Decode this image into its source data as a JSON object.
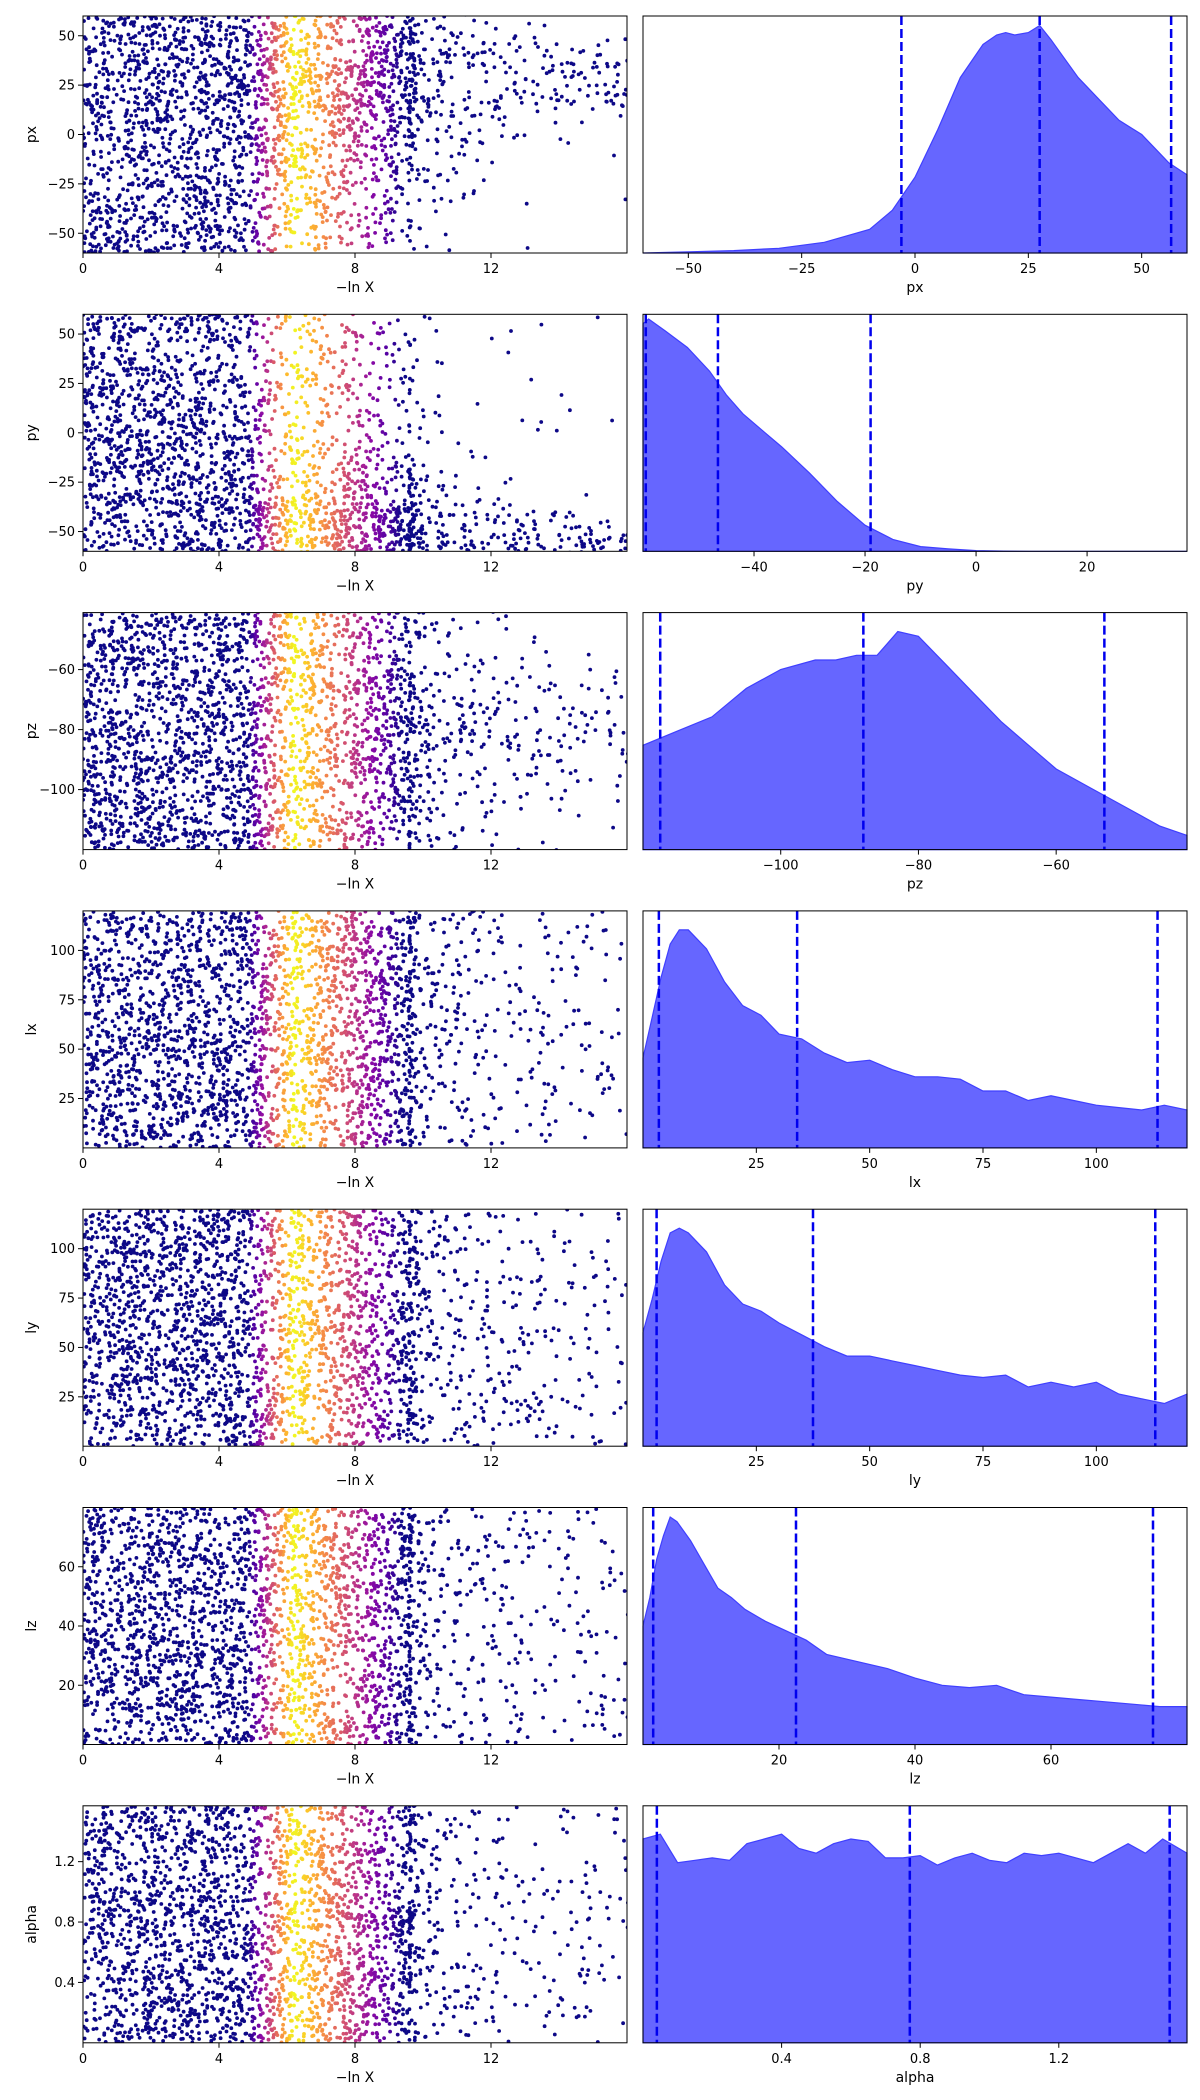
{
  "chart_data": [
    {
      "type": "scatter",
      "xlabel": "−ln X",
      "ylabel": "px",
      "xlim": [
        0,
        16
      ],
      "ylim": [
        -60,
        60
      ],
      "xticks": [
        0,
        4,
        8,
        12
      ],
      "yticks": [
        -50,
        -25,
        0,
        25,
        50
      ],
      "colormap": "plasma",
      "color_peak_x": 6.2,
      "trend": {
        "start_x": 4.0,
        "end_x": 16.5,
        "target": 28,
        "end_spread": 9
      },
      "grid": false
    },
    {
      "type": "area",
      "xlabel": "px",
      "xlim": [
        -60,
        60
      ],
      "xticks": [
        -50,
        -25,
        0,
        25,
        50
      ],
      "fill_color": "#6666ff",
      "edge_color": "#3f3fff",
      "quantile_lines": [
        -3,
        27.5,
        56.5
      ],
      "quantile_color": "#0000ee",
      "x": [
        -60,
        -50,
        -40,
        -30,
        -20,
        -10,
        -5,
        0,
        5,
        10,
        15,
        18,
        20,
        22,
        25,
        27.5,
        30,
        33,
        36,
        40,
        45,
        50,
        53,
        56,
        60
      ],
      "y": [
        0.0,
        0.005,
        0.01,
        0.02,
        0.045,
        0.1,
        0.18,
        0.32,
        0.52,
        0.74,
        0.88,
        0.92,
        0.93,
        0.92,
        0.93,
        0.96,
        0.9,
        0.82,
        0.74,
        0.66,
        0.56,
        0.5,
        0.44,
        0.38,
        0.33
      ],
      "grid": false
    },
    {
      "type": "scatter",
      "xlabel": "−ln X",
      "ylabel": "py",
      "xlim": [
        0,
        16
      ],
      "ylim": [
        -60,
        60
      ],
      "xticks": [
        0,
        4,
        8,
        12
      ],
      "yticks": [
        -50,
        -25,
        0,
        25,
        50
      ],
      "colormap": "plasma",
      "color_peak_x": 6.2,
      "trend": {
        "start_x": 2.5,
        "end_x": 16.5,
        "target": -55,
        "end_spread": 5
      },
      "grid": false
    },
    {
      "type": "area",
      "xlabel": "py",
      "xlim": [
        -60,
        38
      ],
      "xticks": [
        -40,
        -20,
        0,
        20
      ],
      "fill_color": "#6666ff",
      "edge_color": "#3f3fff",
      "quantile_lines": [
        -59.5,
        -46.5,
        -19
      ],
      "quantile_color": "#0000ee",
      "x": [
        -60,
        -59,
        -56,
        -52,
        -48,
        -45,
        -42,
        -38,
        -35,
        -30,
        -25,
        -20,
        -15,
        -10,
        -5,
        0,
        5,
        10,
        20,
        38
      ],
      "y": [
        0.96,
        0.98,
        0.93,
        0.86,
        0.76,
        0.66,
        0.58,
        0.5,
        0.44,
        0.33,
        0.21,
        0.11,
        0.05,
        0.02,
        0.01,
        0.003,
        0.001,
        0.0,
        0.0,
        0.0
      ],
      "grid": false
    },
    {
      "type": "scatter",
      "xlabel": "−ln X",
      "ylabel": "pz",
      "xlim": [
        0,
        16
      ],
      "ylim": [
        -120,
        -41
      ],
      "xticks": [
        0,
        4,
        8,
        12
      ],
      "yticks": [
        -100,
        -80,
        -60
      ],
      "colormap": "plasma",
      "color_peak_x": 6.2,
      "trend": {
        "start_x": 6.5,
        "end_x": 16.5,
        "target": -80,
        "end_spread": 12
      },
      "grid": false
    },
    {
      "type": "area",
      "xlabel": "pz",
      "xlim": [
        -120,
        -41
      ],
      "xticks": [
        -100,
        -80,
        -60
      ],
      "fill_color": "#6666ff",
      "edge_color": "#3f3fff",
      "quantile_lines": [
        -117.5,
        -88,
        -53
      ],
      "quantile_color": "#0000ee",
      "x": [
        -120,
        -115,
        -110,
        -105,
        -100,
        -95,
        -92,
        -89,
        -86,
        -83,
        -80,
        -76,
        -72,
        -68,
        -64,
        -60,
        -55,
        -50,
        -45,
        -41
      ],
      "y": [
        0.44,
        0.5,
        0.56,
        0.68,
        0.76,
        0.8,
        0.8,
        0.82,
        0.82,
        0.92,
        0.9,
        0.78,
        0.66,
        0.54,
        0.44,
        0.34,
        0.26,
        0.18,
        0.1,
        0.06
      ],
      "grid": false
    },
    {
      "type": "scatter",
      "xlabel": "−ln X",
      "ylabel": "lx",
      "xlim": [
        0,
        16
      ],
      "ylim": [
        0,
        120
      ],
      "xticks": [
        0,
        4,
        8,
        12
      ],
      "yticks": [
        25,
        50,
        75,
        100
      ],
      "colormap": "plasma",
      "color_peak_x": 6.2,
      "trend": null,
      "grid": false
    },
    {
      "type": "area",
      "xlabel": "lx",
      "xlim": [
        0,
        120
      ],
      "xticks": [
        25,
        50,
        75,
        100
      ],
      "fill_color": "#6666ff",
      "edge_color": "#3f3fff",
      "quantile_lines": [
        3.5,
        34,
        113.5
      ],
      "quantile_color": "#0000ee",
      "x": [
        0,
        2,
        4,
        6,
        8,
        10,
        14,
        18,
        22,
        26,
        30,
        35,
        40,
        45,
        50,
        55,
        60,
        65,
        70,
        75,
        80,
        85,
        90,
        95,
        100,
        105,
        110,
        115,
        120
      ],
      "y": [
        0.38,
        0.55,
        0.72,
        0.86,
        0.92,
        0.92,
        0.84,
        0.7,
        0.6,
        0.56,
        0.48,
        0.46,
        0.4,
        0.36,
        0.37,
        0.33,
        0.3,
        0.3,
        0.29,
        0.24,
        0.24,
        0.2,
        0.22,
        0.2,
        0.18,
        0.17,
        0.16,
        0.18,
        0.16
      ],
      "grid": false
    },
    {
      "type": "scatter",
      "xlabel": "−ln X",
      "ylabel": "ly",
      "xlim": [
        0,
        16
      ],
      "ylim": [
        0,
        120
      ],
      "xticks": [
        0,
        4,
        8,
        12
      ],
      "yticks": [
        25,
        50,
        75,
        100
      ],
      "colormap": "plasma",
      "color_peak_x": 6.2,
      "trend": null,
      "grid": false
    },
    {
      "type": "area",
      "xlabel": "ly",
      "xlim": [
        0,
        120
      ],
      "xticks": [
        25,
        50,
        75,
        100
      ],
      "fill_color": "#6666ff",
      "edge_color": "#3f3fff",
      "quantile_lines": [
        3,
        37.5,
        113
      ],
      "quantile_color": "#0000ee",
      "x": [
        0,
        2,
        4,
        6,
        8,
        10,
        14,
        18,
        22,
        26,
        30,
        35,
        40,
        45,
        50,
        55,
        60,
        65,
        70,
        75,
        80,
        85,
        90,
        95,
        100,
        105,
        110,
        115,
        120
      ],
      "y": [
        0.48,
        0.62,
        0.78,
        0.9,
        0.92,
        0.9,
        0.82,
        0.68,
        0.6,
        0.57,
        0.52,
        0.47,
        0.42,
        0.38,
        0.38,
        0.36,
        0.34,
        0.32,
        0.3,
        0.29,
        0.3,
        0.25,
        0.27,
        0.25,
        0.27,
        0.22,
        0.2,
        0.18,
        0.22
      ],
      "grid": false
    },
    {
      "type": "scatter",
      "xlabel": "−ln X",
      "ylabel": "lz",
      "xlim": [
        0,
        16
      ],
      "ylim": [
        0,
        80
      ],
      "xticks": [
        0,
        4,
        8,
        12
      ],
      "yticks": [
        20,
        40,
        60
      ],
      "colormap": "plasma",
      "color_peak_x": 6.2,
      "trend": null,
      "grid": false
    },
    {
      "type": "area",
      "xlabel": "lz",
      "xlim": [
        0,
        80
      ],
      "xticks": [
        20,
        40,
        60
      ],
      "fill_color": "#6666ff",
      "edge_color": "#3f3fff",
      "quantile_lines": [
        1.5,
        22.5,
        75
      ],
      "quantile_color": "#0000ee",
      "x": [
        0,
        1,
        2,
        3,
        4,
        5,
        7,
        9,
        11,
        13,
        15,
        18,
        21,
        24,
        27,
        30,
        33,
        36,
        40,
        44,
        48,
        52,
        56,
        60,
        64,
        68,
        72,
        76,
        80
      ],
      "y": [
        0.5,
        0.62,
        0.78,
        0.88,
        0.96,
        0.94,
        0.86,
        0.76,
        0.66,
        0.62,
        0.57,
        0.52,
        0.48,
        0.44,
        0.38,
        0.36,
        0.34,
        0.32,
        0.28,
        0.25,
        0.24,
        0.25,
        0.21,
        0.2,
        0.19,
        0.18,
        0.17,
        0.16,
        0.16
      ],
      "grid": false
    },
    {
      "type": "scatter",
      "xlabel": "−ln X",
      "ylabel": "alpha",
      "xlim": [
        0,
        16
      ],
      "ylim": [
        0,
        1.57
      ],
      "xticks": [
        0,
        4,
        8,
        12
      ],
      "yticks": [
        0.4,
        0.8,
        1.2
      ],
      "colormap": "plasma",
      "color_peak_x": 6.2,
      "trend": null,
      "grid": false
    },
    {
      "type": "area",
      "xlabel": "alpha",
      "xlim": [
        0,
        1.57
      ],
      "xticks": [
        0.4,
        0.8,
        1.2
      ],
      "fill_color": "#6666ff",
      "edge_color": "#3f3fff",
      "quantile_lines": [
        0.04,
        0.77,
        1.52
      ],
      "quantile_color": "#0000ee",
      "x": [
        0,
        0.05,
        0.1,
        0.15,
        0.2,
        0.25,
        0.3,
        0.35,
        0.4,
        0.45,
        0.5,
        0.55,
        0.6,
        0.65,
        0.7,
        0.75,
        0.8,
        0.85,
        0.9,
        0.95,
        1.0,
        1.05,
        1.1,
        1.15,
        1.2,
        1.25,
        1.3,
        1.35,
        1.4,
        1.45,
        1.5,
        1.57
      ],
      "y": [
        0.86,
        0.88,
        0.76,
        0.77,
        0.78,
        0.77,
        0.84,
        0.86,
        0.88,
        0.82,
        0.8,
        0.84,
        0.86,
        0.85,
        0.78,
        0.78,
        0.79,
        0.75,
        0.78,
        0.8,
        0.77,
        0.76,
        0.8,
        0.79,
        0.8,
        0.78,
        0.76,
        0.8,
        0.84,
        0.8,
        0.86,
        0.8
      ],
      "grid": false
    }
  ]
}
